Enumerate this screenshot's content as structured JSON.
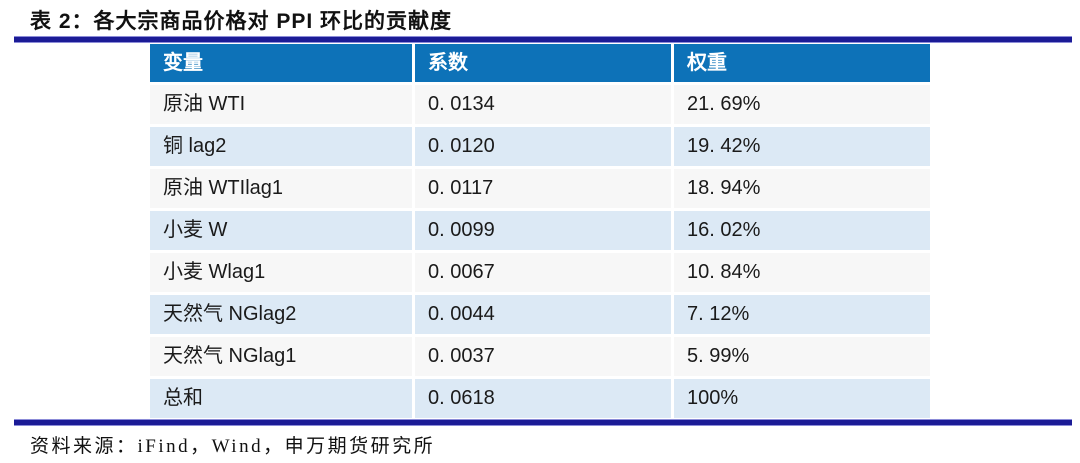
{
  "title": "表 2：各大宗商品价格对 PPI 环比的贡献度",
  "source_line": "资料来源：iFind，Wind，申万期货研究所",
  "colors": {
    "rule_navy": "#1b1b96",
    "header_blue": "#0d72b8",
    "row_gray": "#f7f7f7",
    "row_blue": "#dce9f5",
    "header_text": "#ffffff",
    "body_text": "#1a1a1a"
  },
  "chart_data": {
    "type": "table",
    "title": "表 2：各大宗商品价格对 PPI 环比的贡献度",
    "columns": [
      "变量",
      "系数",
      "权重"
    ],
    "rows": [
      [
        "原油 WTI",
        "0. 0134",
        "21. 69%"
      ],
      [
        "铜 lag2",
        "0. 0120",
        "19. 42%"
      ],
      [
        "原油 WTIlag1",
        "0. 0117",
        "18. 94%"
      ],
      [
        "小麦 W",
        "0. 0099",
        "16. 02%"
      ],
      [
        "小麦 Wlag1",
        "0. 0067",
        "10. 84%"
      ],
      [
        "天然气 NGlag2",
        "0. 0044",
        "7. 12%"
      ],
      [
        "天然气 NGlag1",
        "0. 0037",
        "5. 99%"
      ],
      [
        "总和",
        "0. 0618",
        "100%"
      ]
    ],
    "source": "资料来源：iFind，Wind，申万期货研究所",
    "layout": {
      "row_striping": "gray/blue alternating, totals row blue",
      "legend_position": "none",
      "grid": "white gaps between cells"
    }
  }
}
